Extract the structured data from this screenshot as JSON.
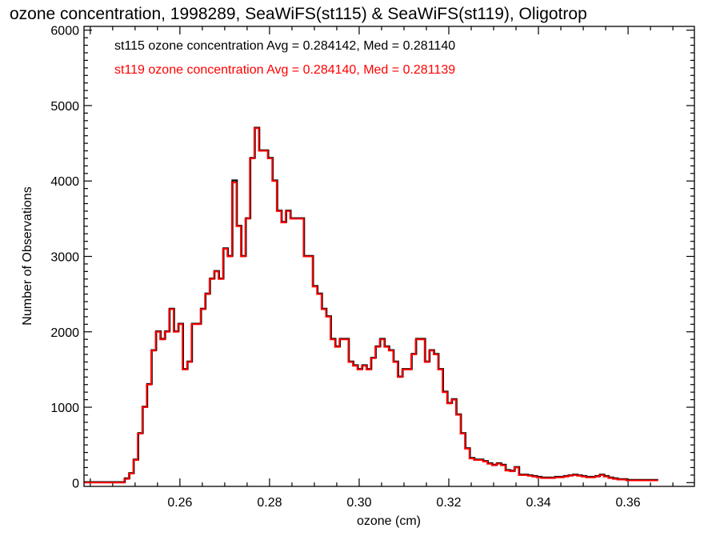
{
  "chart_data": {
    "type": "line",
    "style": "histogram-step",
    "title": "ozone concentration, 1998289, SeaWiFS(st115) & SeaWiFS(st119), Oligotrop",
    "xlabel": "ozone (cm)",
    "ylabel": "Number of Observations",
    "xlim": [
      0.2386,
      0.3748
    ],
    "ylim": [
      -50,
      6050
    ],
    "xticks": [
      0.26,
      0.28,
      0.3,
      0.32,
      0.34,
      0.36
    ],
    "xtick_labels": [
      "0.26",
      "0.28",
      "0.30",
      "0.32",
      "0.34",
      "0.36"
    ],
    "yticks": [
      0,
      1000,
      2000,
      3000,
      4000,
      5000,
      6000
    ],
    "ytick_labels": [
      "0",
      "1000",
      "2000",
      "3000",
      "4000",
      "5000",
      "6000"
    ],
    "grid": false,
    "annotations": [
      {
        "text": "st115 ozone concentration Avg = 0.284142, Med = 0.281140",
        "color": "#000000"
      },
      {
        "text": "st119 ozone concentration Avg = 0.284140, Med = 0.281139",
        "color": "#ff0000"
      }
    ],
    "bin_start": 0.2386,
    "bin_width": 0.001,
    "series": [
      {
        "name": "st115",
        "color": "#000000",
        "values": [
          0,
          0,
          0,
          0,
          0,
          0,
          0,
          0,
          0,
          50,
          120,
          300,
          650,
          1000,
          1300,
          1750,
          2000,
          1900,
          2000,
          2300,
          2000,
          2100,
          1500,
          1600,
          2100,
          2100,
          2300,
          2500,
          2700,
          2800,
          2700,
          3100,
          3000,
          4000,
          3400,
          3000,
          3500,
          4300,
          4700,
          4400,
          4400,
          4300,
          4000,
          3600,
          3450,
          3600,
          3500,
          3500,
          3500,
          3000,
          3000,
          2600,
          2500,
          2300,
          2200,
          1900,
          1800,
          1900,
          1900,
          1600,
          1550,
          1500,
          1550,
          1500,
          1650,
          1800,
          1900,
          1800,
          1750,
          1600,
          1400,
          1500,
          1500,
          1700,
          1900,
          1900,
          1600,
          1750,
          1700,
          1500,
          1200,
          1050,
          1100,
          900,
          650,
          450,
          320,
          300,
          300,
          280,
          250,
          230,
          250,
          230,
          160,
          150,
          200,
          100,
          100,
          90,
          80,
          70,
          60,
          60,
          60,
          70,
          70,
          80,
          90,
          100,
          90,
          80,
          70,
          70,
          80,
          100,
          80,
          60,
          50,
          40,
          40,
          30,
          30,
          30,
          30,
          30,
          30,
          30
        ]
      },
      {
        "name": "st119",
        "color": "#ff0000",
        "values": [
          0,
          0,
          0,
          0,
          0,
          0,
          0,
          0,
          0,
          50,
          120,
          300,
          650,
          1000,
          1300,
          1750,
          2000,
          1900,
          2000,
          2300,
          2000,
          2100,
          1500,
          1600,
          2100,
          2100,
          2300,
          2500,
          2700,
          2800,
          2700,
          3100,
          3000,
          3980,
          3400,
          3000,
          3500,
          4300,
          4700,
          4400,
          4400,
          4300,
          4000,
          3600,
          3450,
          3600,
          3500,
          3500,
          3500,
          3000,
          3000,
          2600,
          2500,
          2300,
          2200,
          1900,
          1800,
          1900,
          1900,
          1600,
          1550,
          1500,
          1550,
          1500,
          1650,
          1800,
          1900,
          1800,
          1750,
          1600,
          1400,
          1500,
          1500,
          1700,
          1900,
          1900,
          1600,
          1750,
          1700,
          1500,
          1200,
          1050,
          1100,
          900,
          650,
          450,
          320,
          300,
          300,
          280,
          250,
          230,
          250,
          230,
          160,
          150,
          200,
          100,
          100,
          90,
          80,
          70,
          60,
          60,
          60,
          70,
          70,
          80,
          90,
          100,
          90,
          80,
          70,
          70,
          80,
          100,
          80,
          60,
          50,
          40,
          40,
          30,
          30,
          30,
          30,
          30,
          30,
          30
        ]
      }
    ]
  }
}
